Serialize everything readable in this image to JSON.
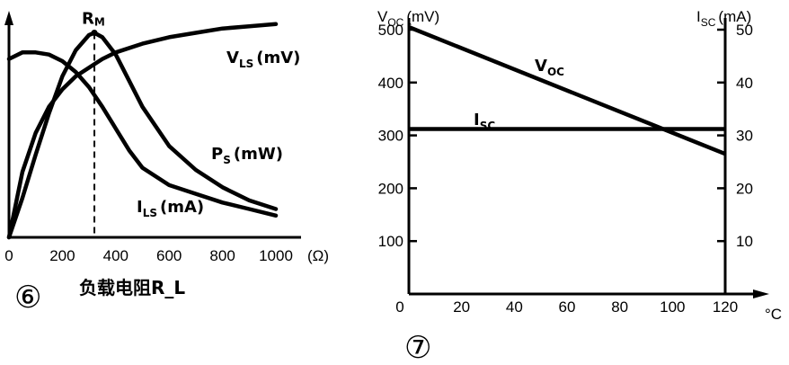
{
  "figures": [
    {
      "number": "⑥"
    },
    {
      "number": "⑦"
    }
  ],
  "chart_data": [
    {
      "type": "line",
      "xlabel": "负载电阻R_L",
      "x_unit": "(Ω)",
      "x_ticks": [
        "0",
        "200",
        "400",
        "600",
        "800",
        "1000"
      ],
      "xlim": [
        0,
        1000
      ],
      "marker_label": "R_M",
      "marker_x": 320,
      "series": [
        {
          "name": "V_LS (mV)",
          "label_parts": [
            "V",
            "LS",
            "(mV)"
          ],
          "x": [
            0,
            50,
            100,
            150,
            200,
            250,
            300,
            350,
            400,
            500,
            600,
            700,
            800,
            900,
            1000
          ],
          "y": [
            0,
            0.3,
            0.48,
            0.6,
            0.68,
            0.74,
            0.78,
            0.82,
            0.85,
            0.89,
            0.92,
            0.94,
            0.96,
            0.97,
            0.98
          ]
        },
        {
          "name": "P_S (mW)",
          "label_parts": [
            "P",
            "S",
            "(mW)"
          ],
          "x": [
            0,
            50,
            100,
            150,
            200,
            250,
            300,
            320,
            350,
            400,
            450,
            500,
            600,
            700,
            800,
            900,
            1000
          ],
          "y": [
            0,
            0.18,
            0.38,
            0.57,
            0.74,
            0.86,
            0.93,
            0.94,
            0.92,
            0.84,
            0.72,
            0.6,
            0.42,
            0.31,
            0.23,
            0.17,
            0.13
          ]
        },
        {
          "name": "I_LS (mA)",
          "label_parts": [
            "I",
            "LS",
            "(mA)"
          ],
          "x": [
            0,
            50,
            100,
            150,
            200,
            250,
            300,
            350,
            400,
            450,
            500,
            600,
            700,
            800,
            900,
            1000
          ],
          "y": [
            0.82,
            0.85,
            0.85,
            0.84,
            0.81,
            0.76,
            0.69,
            0.6,
            0.5,
            0.4,
            0.32,
            0.24,
            0.2,
            0.16,
            0.13,
            0.1
          ]
        }
      ]
    },
    {
      "type": "line",
      "xlabel": "°C",
      "x_ticks": [
        "0",
        "20",
        "40",
        "60",
        "80",
        "100",
        "120"
      ],
      "xlim": [
        0,
        120
      ],
      "ylabel_left": "V_OC (mV)",
      "ylabel_left_parts": [
        "V",
        "OC",
        "(mV)"
      ],
      "yleft_ticks": [
        "100",
        "200",
        "300",
        "400",
        "500"
      ],
      "ylim_left": [
        0,
        500
      ],
      "ylabel_right": "I_SC (mA)",
      "ylabel_right_parts": [
        "I",
        "SC",
        "(mA)"
      ],
      "yright_ticks": [
        "10",
        "20",
        "30",
        "40",
        "50"
      ],
      "ylim_right": [
        0,
        50
      ],
      "series": [
        {
          "name": "V_OC",
          "label_parts": [
            "V",
            "OC"
          ],
          "axis": "left",
          "x": [
            0,
            120
          ],
          "y": [
            505,
            265
          ]
        },
        {
          "name": "I_SC",
          "label_parts": [
            "I",
            "SC"
          ],
          "axis": "right",
          "x": [
            0,
            120
          ],
          "y": [
            31.2,
            31.2
          ]
        }
      ]
    }
  ]
}
